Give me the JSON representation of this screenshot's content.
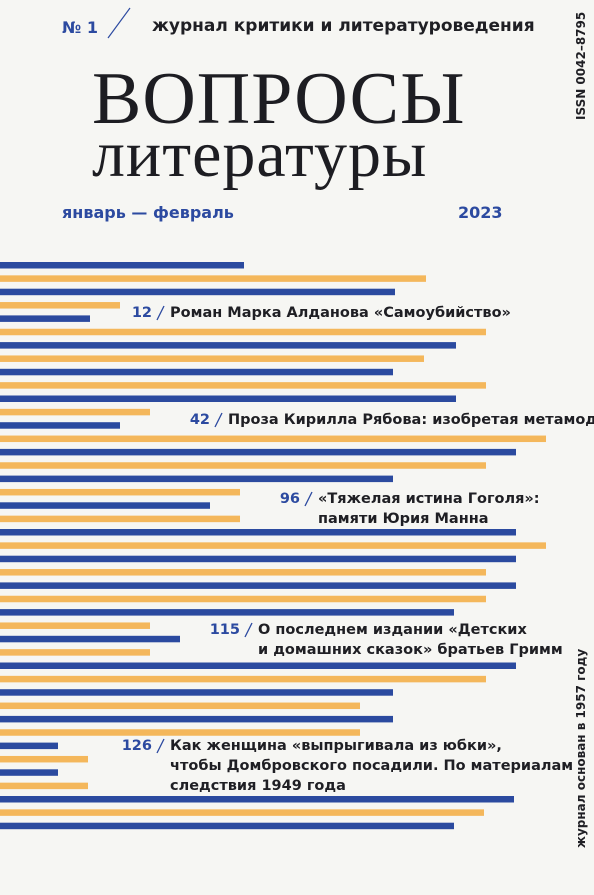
{
  "header": {
    "issue": "№ 1",
    "subtitle": "журнал критики и литературоведения",
    "issn": "ISSN 0042–8795",
    "title_line1": "ВОПРОСЫ",
    "title_line2": "литературы",
    "months": "январь — февраль",
    "year": "2023",
    "founded": "журнал основан в 1957 году"
  },
  "contents": [
    {
      "page": "12",
      "lines": [
        "Роман Марка Алданова «Самоубийство»"
      ]
    },
    {
      "page": "42",
      "lines": [
        "Проза Кирилла Рябова: изобретая метамодерн"
      ]
    },
    {
      "page": "96",
      "lines": [
        "«Тяжелая истина Гоголя»:",
        "памяти Юрия Манна"
      ]
    },
    {
      "page": "115",
      "lines": [
        "О последнем издании «Детских",
        "и домашних сказок» братьев Гримм"
      ]
    },
    {
      "page": "126",
      "lines": [
        "Как женщина «выпрыгивала из юбки»,",
        "чтобы Домбровского посадили. По материалам",
        "следствия 1949 года"
      ]
    }
  ]
}
